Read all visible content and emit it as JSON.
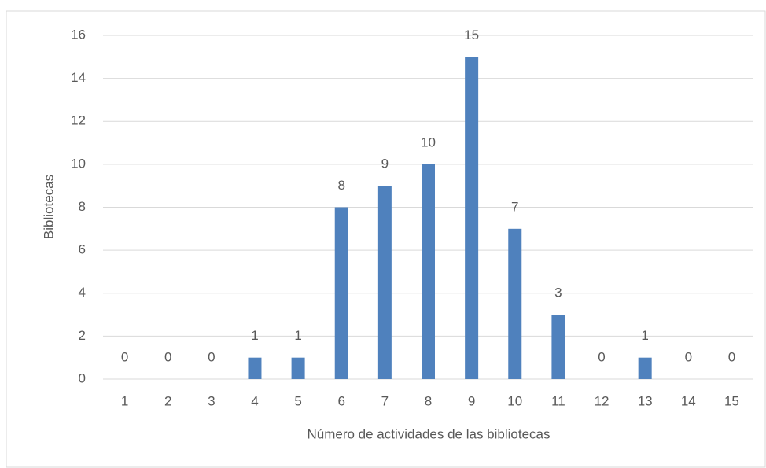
{
  "chart_data": {
    "type": "bar",
    "x_label": "Número de actividades de las bibliotecas",
    "y_label": "Bibliotecas",
    "categories": [
      "1",
      "2",
      "3",
      "4",
      "5",
      "6",
      "7",
      "8",
      "9",
      "10",
      "11",
      "12",
      "13",
      "14",
      "15"
    ],
    "values": [
      0,
      0,
      0,
      1,
      1,
      8,
      9,
      10,
      15,
      7,
      3,
      0,
      1,
      0,
      0
    ],
    "color": "#4f81bd",
    "ylim": [
      0,
      16
    ],
    "yticks": [
      0,
      2,
      4,
      6,
      8,
      10,
      12,
      14,
      16
    ],
    "grid": true
  }
}
